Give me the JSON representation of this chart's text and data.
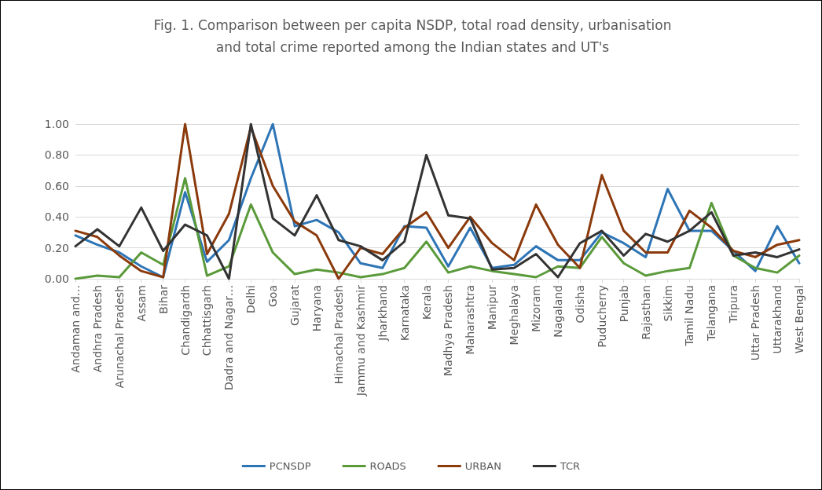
{
  "chart_data": {
    "type": "line",
    "title": "Fig. 1. Comparison between per capita NSDP, total road density, urbanisation and total crime reported among the Indian states and UT's",
    "categories": [
      "Andaman and…",
      "Andhra Pradesh",
      "Arunachal Pradesh",
      "Assam",
      "Bihar",
      "Chandigardh",
      "Chhattisgarh",
      "Dadra and Nagar…",
      "Delhi",
      "Goa",
      "Gujarat",
      "Haryana",
      "Himachal Pradesh",
      "Jammu and Kashmir",
      "Jharkhand",
      "Karnataka",
      "Kerala",
      "Madhya Pradesh",
      "Maharashtra",
      "Manipur",
      "Meghalaya",
      "Mizoram",
      "Nagaland",
      "Odisha",
      "Puducherry",
      "Punjab",
      "Rajasthan",
      "Sikkim",
      "Tamil Nadu",
      "Telangana",
      "Tripura",
      "Uttar Pradesh",
      "Uttarakhand",
      "West Bengal"
    ],
    "series": [
      {
        "name": "PCNSDP",
        "color": "#2e75b6",
        "values": [
          0.28,
          0.22,
          0.17,
          0.08,
          0.01,
          0.56,
          0.11,
          0.25,
          0.65,
          1.0,
          0.34,
          0.38,
          0.3,
          0.1,
          0.07,
          0.34,
          0.33,
          0.08,
          0.33,
          0.07,
          0.09,
          0.21,
          0.12,
          0.12,
          0.3,
          0.23,
          0.14,
          0.58,
          0.31,
          0.31,
          0.18,
          0.05,
          0.34,
          0.1
        ]
      },
      {
        "name": "ROADS",
        "color": "#5a9a3a",
        "values": [
          0.0,
          0.02,
          0.01,
          0.17,
          0.09,
          0.65,
          0.02,
          0.08,
          0.48,
          0.17,
          0.03,
          0.06,
          0.04,
          0.01,
          0.03,
          0.07,
          0.24,
          0.04,
          0.08,
          0.05,
          0.03,
          0.01,
          0.08,
          0.07,
          0.27,
          0.1,
          0.02,
          0.05,
          0.07,
          0.49,
          0.15,
          0.07,
          0.04,
          0.15
        ]
      },
      {
        "name": "URBAN",
        "color": "#8b3a0c",
        "values": [
          0.31,
          0.27,
          0.15,
          0.05,
          0.01,
          1.0,
          0.16,
          0.42,
          0.98,
          0.6,
          0.37,
          0.28,
          0.0,
          0.2,
          0.16,
          0.33,
          0.43,
          0.2,
          0.4,
          0.23,
          0.12,
          0.48,
          0.22,
          0.07,
          0.67,
          0.31,
          0.17,
          0.17,
          0.44,
          0.33,
          0.18,
          0.14,
          0.22,
          0.25
        ]
      },
      {
        "name": "TCR",
        "color": "#333333",
        "values": [
          0.21,
          0.32,
          0.21,
          0.46,
          0.18,
          0.35,
          0.28,
          0.0,
          1.0,
          0.39,
          0.28,
          0.54,
          0.25,
          0.21,
          0.12,
          0.24,
          0.8,
          0.41,
          0.39,
          0.06,
          0.07,
          0.16,
          0.01,
          0.23,
          0.31,
          0.15,
          0.29,
          0.24,
          0.31,
          0.43,
          0.15,
          0.17,
          0.14,
          0.19
        ]
      }
    ],
    "ylim": [
      0,
      1
    ],
    "yticks": [
      {
        "value": 0,
        "label": "0.00"
      },
      {
        "value": 0.2,
        "label": "0.20"
      },
      {
        "value": 0.4,
        "label": "0.40"
      },
      {
        "value": 0.6,
        "label": "0.60"
      },
      {
        "value": 0.8,
        "label": "0.80"
      },
      {
        "value": 1,
        "label": "1.00"
      }
    ],
    "grid": "y",
    "legend": "bottom",
    "marker": "none",
    "line_style": "solid"
  }
}
